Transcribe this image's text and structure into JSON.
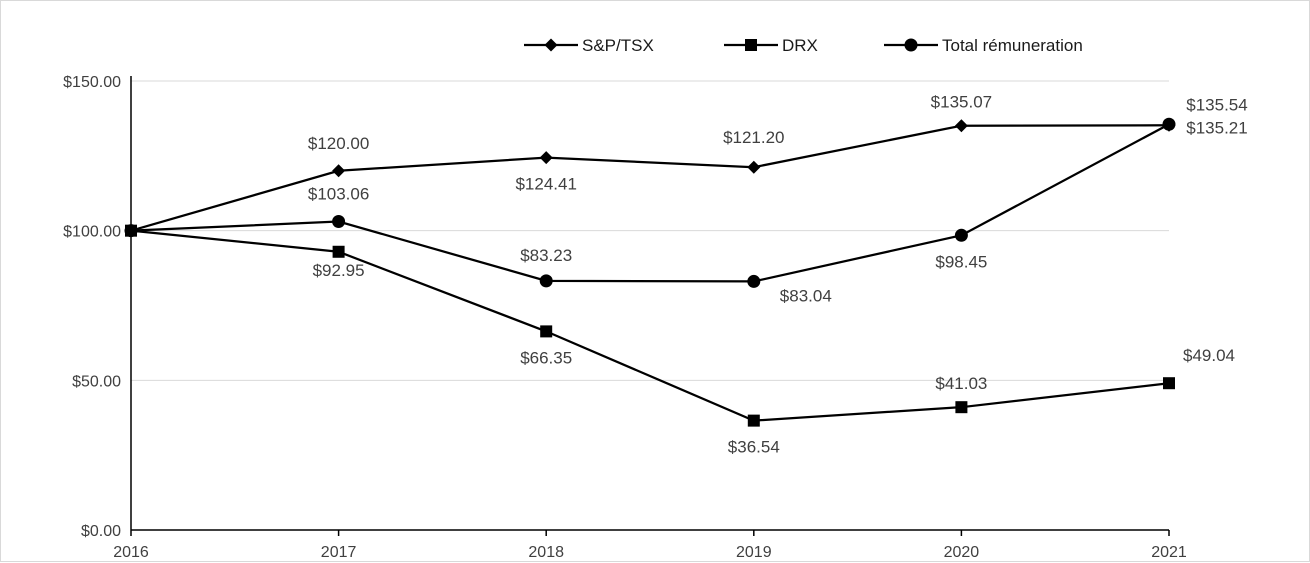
{
  "chart_data": {
    "type": "line",
    "title": "",
    "xlabel": "",
    "ylabel": "",
    "x": [
      "2016",
      "2017",
      "2018",
      "2019",
      "2020",
      "2021"
    ],
    "ylim": [
      0,
      150
    ],
    "y_ticks": [
      "$0.00",
      "$50.00",
      "$100.00",
      "$150.00"
    ],
    "y_tick_values": [
      0,
      50,
      100,
      150
    ],
    "grid": true,
    "legend_position": "top",
    "series": [
      {
        "name": "S&P/TSX",
        "marker": "diamond",
        "values": [
          100,
          120.0,
          124.41,
          121.2,
          135.07,
          135.21
        ],
        "labels": [
          "",
          "$120.00",
          "$124.41",
          "$121.20",
          "$135.07",
          "$135.21"
        ]
      },
      {
        "name": "DRX",
        "marker": "square",
        "values": [
          100,
          92.95,
          66.35,
          36.54,
          41.03,
          49.04
        ],
        "labels": [
          "",
          "$92.95",
          "$66.35",
          "$36.54",
          "$41.03",
          "$49.04"
        ]
      },
      {
        "name": "Total rémuneration",
        "marker": "circle",
        "values": [
          100,
          103.06,
          83.23,
          83.04,
          98.45,
          135.54
        ],
        "labels": [
          "",
          "$103.06",
          "$83.23",
          "$83.04",
          "$98.45",
          "$135.54"
        ]
      }
    ],
    "colors": {
      "line": "#000000",
      "grid": "#d9d9d9",
      "axis": "#000000",
      "text": "#404040"
    }
  }
}
